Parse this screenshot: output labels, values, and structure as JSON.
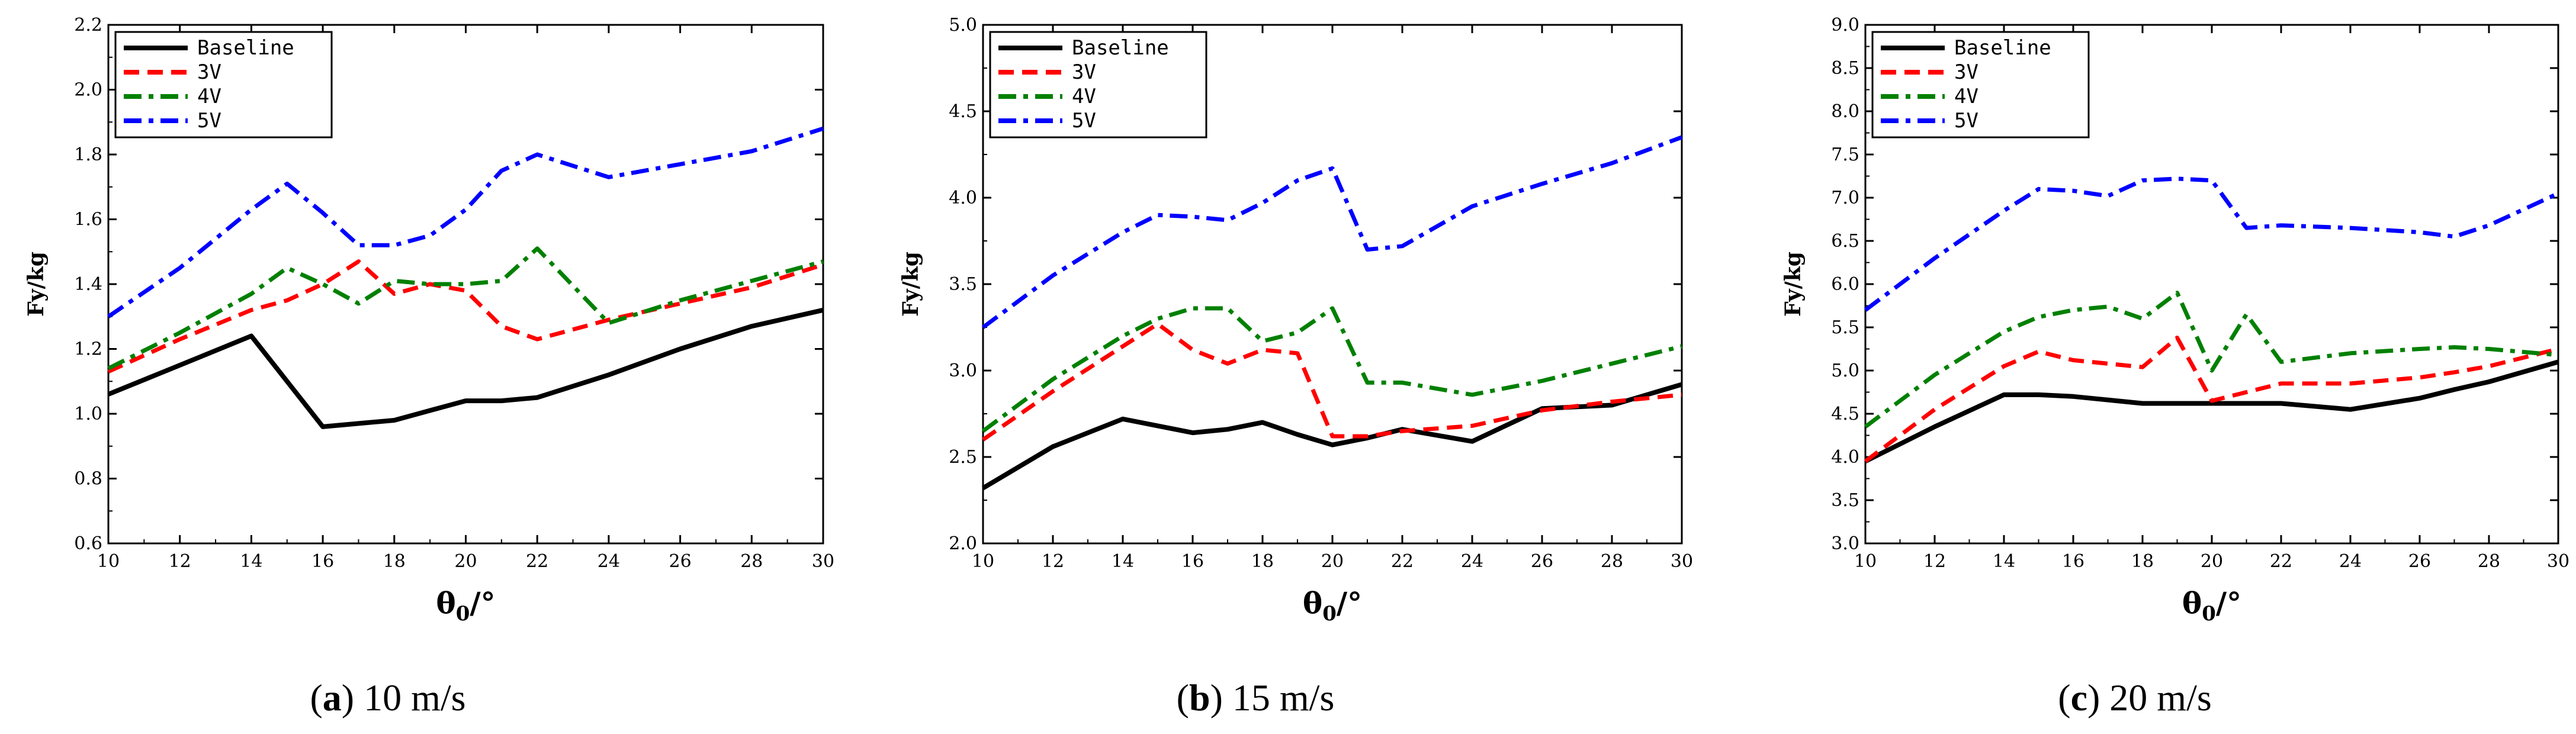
{
  "chart_data": [
    {
      "type": "line",
      "caption": {
        "letter": "a",
        "text": "10 m/s"
      },
      "x": [
        10,
        12,
        14,
        15,
        16,
        17,
        18,
        19,
        20,
        21,
        22,
        24,
        26,
        28,
        30
      ],
      "xlim": [
        10,
        30
      ],
      "xticks": [
        "10",
        "12",
        "14",
        "16",
        "18",
        "20",
        "22",
        "24",
        "26",
        "28",
        "30"
      ],
      "ylim": [
        0.6,
        2.2
      ],
      "yticks": [
        "0.6",
        "0.8",
        "1.0",
        "1.2",
        "1.4",
        "1.6",
        "1.8",
        "2.0",
        "2.2"
      ],
      "ylabel": "Fy/kg",
      "xlabel": "θ0/°",
      "xlabel_main": "θ",
      "xlabel_sub": "0",
      "xlabel_suffix": "/°",
      "legend_position": "top-left",
      "series": [
        {
          "name": "Baseline",
          "color": "#000000",
          "dash": "solid",
          "values": [
            1.06,
            1.15,
            1.24,
            1.1,
            0.96,
            0.97,
            0.98,
            1.01,
            1.04,
            1.04,
            1.05,
            1.12,
            1.2,
            1.27,
            1.32
          ]
        },
        {
          "name": "3V",
          "color": "#ff0000",
          "dash": "dash",
          "values": [
            1.13,
            1.23,
            1.32,
            1.35,
            1.4,
            1.47,
            1.37,
            1.4,
            1.38,
            1.27,
            1.23,
            1.29,
            1.34,
            1.39,
            1.46
          ]
        },
        {
          "name": "4V",
          "color": "#008000",
          "dash": "dashdot",
          "values": [
            1.14,
            1.25,
            1.37,
            1.45,
            1.4,
            1.34,
            1.41,
            1.4,
            1.4,
            1.41,
            1.51,
            1.28,
            1.35,
            1.41,
            1.47
          ]
        },
        {
          "name": "5V",
          "color": "#0000ff",
          "dash": "dashdot",
          "values": [
            1.3,
            1.45,
            1.63,
            1.71,
            1.62,
            1.52,
            1.52,
            1.55,
            1.63,
            1.75,
            1.8,
            1.73,
            1.77,
            1.81,
            1.88
          ]
        }
      ]
    },
    {
      "type": "line",
      "caption": {
        "letter": "b",
        "text": "15 m/s"
      },
      "x": [
        10,
        12,
        14,
        15,
        16,
        17,
        18,
        19,
        20,
        21,
        22,
        24,
        26,
        28,
        30
      ],
      "xlim": [
        10,
        30
      ],
      "xticks": [
        "10",
        "12",
        "14",
        "16",
        "18",
        "20",
        "22",
        "24",
        "26",
        "28",
        "30"
      ],
      "ylim": [
        2.0,
        5.0
      ],
      "yticks": [
        "2.0",
        "2.5",
        "3.0",
        "3.5",
        "4.0",
        "4.5",
        "5.0"
      ],
      "ylabel": "Fy/kg",
      "xlabel": "θ0/°",
      "xlabel_main": "θ",
      "xlabel_sub": "0",
      "xlabel_suffix": "/°",
      "legend_position": "top-left",
      "series": [
        {
          "name": "Baseline",
          "color": "#000000",
          "dash": "solid",
          "values": [
            2.32,
            2.56,
            2.72,
            2.68,
            2.64,
            2.66,
            2.7,
            2.63,
            2.57,
            2.61,
            2.66,
            2.59,
            2.78,
            2.8,
            2.92
          ]
        },
        {
          "name": "3V",
          "color": "#ff0000",
          "dash": "dash",
          "values": [
            2.6,
            2.88,
            3.14,
            3.27,
            3.12,
            3.04,
            3.12,
            3.1,
            2.62,
            2.62,
            2.65,
            2.68,
            2.77,
            2.82,
            2.86
          ]
        },
        {
          "name": "4V",
          "color": "#008000",
          "dash": "dashdot",
          "values": [
            2.65,
            2.95,
            3.2,
            3.3,
            3.36,
            3.36,
            3.17,
            3.22,
            3.36,
            2.93,
            2.93,
            2.86,
            2.94,
            3.04,
            3.14
          ]
        },
        {
          "name": "5V",
          "color": "#0000ff",
          "dash": "dashdot",
          "values": [
            3.25,
            3.55,
            3.8,
            3.9,
            3.89,
            3.87,
            3.97,
            4.1,
            4.17,
            3.7,
            3.72,
            3.95,
            4.08,
            4.2,
            4.35
          ]
        }
      ]
    },
    {
      "type": "line",
      "caption": {
        "letter": "c",
        "text": "20 m/s"
      },
      "x": [
        10,
        12,
        14,
        15,
        16,
        17,
        18,
        19,
        20,
        21,
        22,
        24,
        26,
        27,
        28,
        30
      ],
      "xlim": [
        10,
        30
      ],
      "xticks": [
        "10",
        "12",
        "14",
        "16",
        "18",
        "20",
        "22",
        "24",
        "26",
        "28",
        "30"
      ],
      "ylim": [
        3.0,
        9.0
      ],
      "yticks": [
        "3.0",
        "3.5",
        "4.0",
        "4.5",
        "5.0",
        "5.5",
        "6.0",
        "6.5",
        "7.0",
        "7.5",
        "8.0",
        "8.5",
        "9.0"
      ],
      "ylabel": "Fy/kg",
      "xlabel": "θ0/°",
      "xlabel_main": "θ",
      "xlabel_sub": "0",
      "xlabel_suffix": "/°",
      "legend_position": "top-left",
      "series": [
        {
          "name": "Baseline",
          "color": "#000000",
          "dash": "solid",
          "values": [
            3.95,
            4.35,
            4.72,
            4.72,
            4.7,
            4.66,
            4.62,
            4.62,
            4.62,
            4.62,
            4.62,
            4.55,
            4.68,
            4.78,
            4.87,
            5.1
          ]
        },
        {
          "name": "3V",
          "color": "#ff0000",
          "dash": "dash",
          "values": [
            3.95,
            4.55,
            5.05,
            5.22,
            5.12,
            5.08,
            5.04,
            5.38,
            4.65,
            4.75,
            4.85,
            4.85,
            4.92,
            4.98,
            5.05,
            5.25
          ]
        },
        {
          "name": "4V",
          "color": "#008000",
          "dash": "dashdot",
          "values": [
            4.35,
            4.95,
            5.45,
            5.62,
            5.7,
            5.74,
            5.6,
            5.9,
            5.0,
            5.65,
            5.1,
            5.2,
            5.25,
            5.27,
            5.25,
            5.18
          ]
        },
        {
          "name": "5V",
          "color": "#0000ff",
          "dash": "dashdot",
          "values": [
            5.7,
            6.3,
            6.85,
            7.1,
            7.08,
            7.02,
            7.2,
            7.22,
            7.2,
            6.65,
            6.68,
            6.65,
            6.6,
            6.55,
            6.68,
            7.05
          ]
        }
      ]
    }
  ]
}
